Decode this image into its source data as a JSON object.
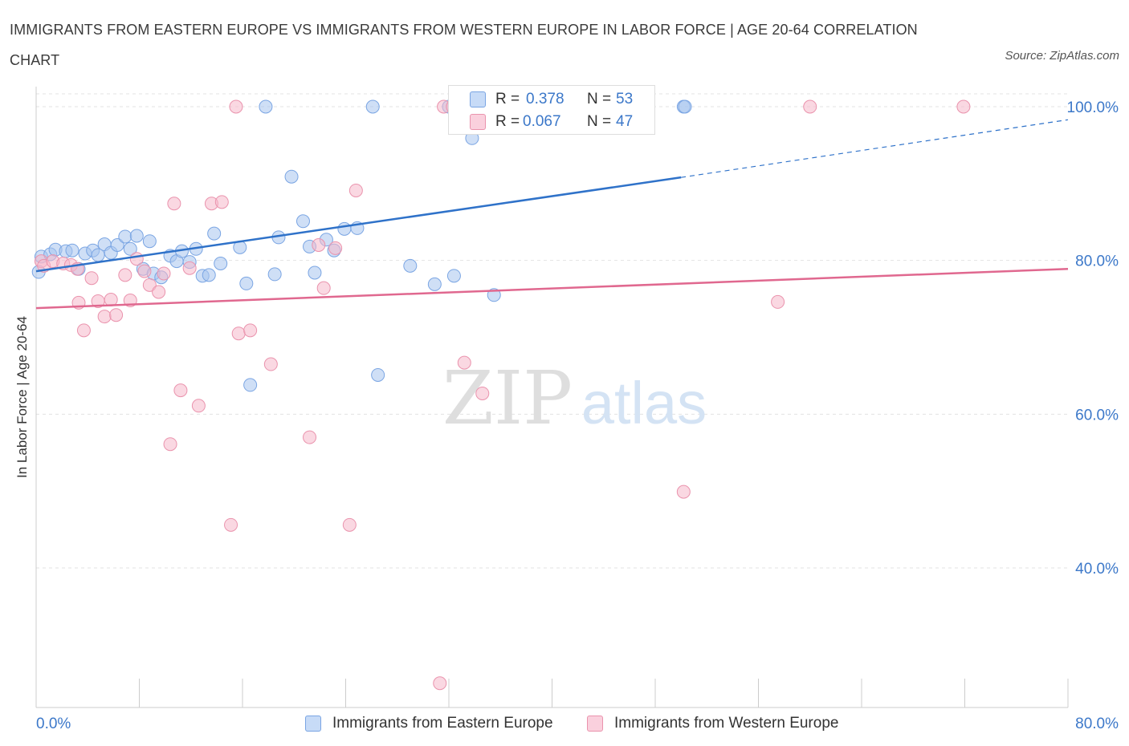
{
  "title": "IMMIGRANTS FROM EASTERN EUROPE VS IMMIGRANTS FROM WESTERN EUROPE IN LABOR FORCE | AGE 20-64 CORRELATION CHART",
  "source": "Source: ZipAtlas.com",
  "watermark": {
    "zip": "ZIP",
    "atlas": "atlas"
  },
  "legend": {
    "rows": [
      {
        "r_label": "R =",
        "r_value": "0.378",
        "n_label": "N =",
        "n_value": "53",
        "color": "#a7c4ef"
      },
      {
        "r_label": "R =",
        "r_value": "0.067",
        "n_label": "N =",
        "n_value": "47",
        "color": "#f5b8cb"
      }
    ]
  },
  "bottom_legend": {
    "eastern": "Immigrants from Eastern Europe",
    "western": "Immigrants from Western Europe"
  },
  "chart_data": {
    "type": "scatter",
    "title": "IMMIGRANTS FROM EASTERN EUROPE VS IMMIGRANTS FROM WESTERN EUROPE IN LABOR FORCE | AGE 20-64 CORRELATION CHART",
    "xlabel": "",
    "ylabel": "In Labor Force | Age 20-64",
    "xlim": [
      0,
      80
    ],
    "ylim": [
      20,
      100
    ],
    "x_tick_labels": [
      "0.0%",
      "80.0%"
    ],
    "y_ticks": [
      {
        "value": 100,
        "label": "100.0%"
      },
      {
        "value": 80,
        "label": "80.0%"
      },
      {
        "value": 60,
        "label": "60.0%"
      },
      {
        "value": 40,
        "label": "40.0%"
      }
    ],
    "grid": true,
    "series": [
      {
        "name": "Immigrants from Eastern Europe",
        "color": "#a7c4ef",
        "stroke": "#7aa5e3",
        "line_color": "#2f72c9",
        "R": 0.378,
        "N": 53,
        "trend": {
          "x0": 0,
          "y0": 78.6,
          "x1": 50,
          "y1": 90.8,
          "dash_to_x": 80,
          "dash_to_y": 98.3
        },
        "points": [
          [
            0.2,
            78.5
          ],
          [
            0.4,
            80.5
          ],
          [
            1.1,
            80.8
          ],
          [
            1.5,
            81.4
          ],
          [
            2.3,
            81.2
          ],
          [
            2.8,
            81.3
          ],
          [
            3.3,
            78.9
          ],
          [
            3.8,
            80.9
          ],
          [
            4.4,
            81.3
          ],
          [
            4.8,
            80.7
          ],
          [
            5.3,
            82.1
          ],
          [
            5.8,
            81.0
          ],
          [
            6.3,
            82.0
          ],
          [
            6.9,
            83.1
          ],
          [
            7.3,
            81.5
          ],
          [
            7.8,
            83.2
          ],
          [
            8.3,
            78.9
          ],
          [
            8.8,
            82.5
          ],
          [
            9.1,
            78.3
          ],
          [
            9.7,
            77.8
          ],
          [
            10.4,
            80.6
          ],
          [
            10.9,
            79.9
          ],
          [
            11.3,
            81.2
          ],
          [
            11.9,
            79.8
          ],
          [
            12.4,
            81.5
          ],
          [
            12.9,
            78.0
          ],
          [
            13.4,
            78.1
          ],
          [
            13.8,
            83.5
          ],
          [
            14.3,
            79.6
          ],
          [
            15.8,
            81.7
          ],
          [
            16.3,
            77.0
          ],
          [
            16.6,
            63.8
          ],
          [
            17.8,
            100.0
          ],
          [
            18.5,
            78.2
          ],
          [
            18.8,
            83.0
          ],
          [
            19.8,
            90.9
          ],
          [
            20.7,
            85.1
          ],
          [
            21.2,
            81.8
          ],
          [
            21.6,
            78.4
          ],
          [
            22.5,
            82.7
          ],
          [
            23.1,
            81.3
          ],
          [
            23.9,
            84.1
          ],
          [
            24.9,
            84.2
          ],
          [
            26.1,
            100.0
          ],
          [
            26.5,
            65.1
          ],
          [
            29.0,
            79.3
          ],
          [
            30.9,
            76.9
          ],
          [
            32.0,
            100.0
          ],
          [
            32.4,
            78.0
          ],
          [
            33.8,
            95.9
          ],
          [
            35.5,
            75.5
          ],
          [
            50.2,
            100.0
          ],
          [
            50.3,
            100.0
          ]
        ]
      },
      {
        "name": "Immigrants from Western Europe",
        "color": "#f5b8cb",
        "stroke": "#ea93ad",
        "line_color": "#e0688f",
        "R": 0.067,
        "N": 47,
        "trend": {
          "x0": 0,
          "y0": 73.8,
          "x1": 80,
          "y1": 78.9
        },
        "points": [
          [
            0.4,
            79.9
          ],
          [
            0.6,
            79.3
          ],
          [
            1.3,
            79.9
          ],
          [
            2.1,
            79.6
          ],
          [
            2.7,
            79.4
          ],
          [
            3.2,
            78.9
          ],
          [
            3.3,
            74.5
          ],
          [
            3.7,
            70.9
          ],
          [
            4.3,
            77.7
          ],
          [
            4.8,
            74.7
          ],
          [
            5.3,
            72.7
          ],
          [
            5.8,
            74.9
          ],
          [
            6.2,
            72.9
          ],
          [
            6.9,
            78.1
          ],
          [
            7.3,
            74.8
          ],
          [
            7.8,
            80.2
          ],
          [
            8.4,
            78.6
          ],
          [
            8.8,
            76.8
          ],
          [
            9.5,
            75.9
          ],
          [
            9.9,
            78.3
          ],
          [
            10.4,
            56.1
          ],
          [
            10.7,
            87.4
          ],
          [
            11.2,
            63.1
          ],
          [
            11.9,
            79.0
          ],
          [
            12.6,
            61.1
          ],
          [
            13.6,
            87.4
          ],
          [
            14.4,
            87.6
          ],
          [
            15.1,
            45.6
          ],
          [
            15.5,
            100.0
          ],
          [
            15.7,
            70.5
          ],
          [
            16.6,
            70.9
          ],
          [
            18.2,
            66.5
          ],
          [
            21.2,
            57.0
          ],
          [
            21.9,
            82.0
          ],
          [
            22.3,
            76.4
          ],
          [
            23.2,
            81.6
          ],
          [
            24.3,
            45.6
          ],
          [
            24.8,
            89.1
          ],
          [
            31.3,
            25.0
          ],
          [
            31.6,
            100.0
          ],
          [
            32.3,
            100.0
          ],
          [
            33.2,
            66.7
          ],
          [
            34.6,
            62.7
          ],
          [
            50.2,
            49.9
          ],
          [
            57.5,
            74.6
          ],
          [
            60.0,
            100.0
          ],
          [
            71.9,
            100.0
          ]
        ]
      }
    ]
  }
}
